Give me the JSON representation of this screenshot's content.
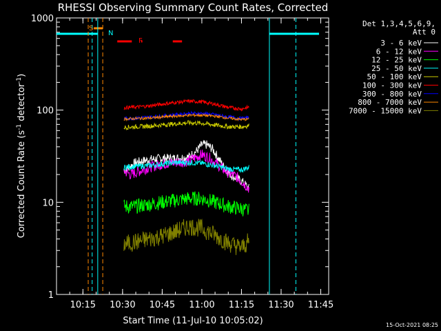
{
  "chart_data": {
    "type": "line",
    "title": "RHESSI Observing Summary Count Rates, Corrected",
    "xlabel": "Start Time (11-Jul-10 10:05:02)",
    "ylabel_main": "Corrected Count Rate (s",
    "ylabel_sup1": "-1",
    "ylabel_mid": " detector",
    "ylabel_sup2": "-1",
    "ylabel_end": ")",
    "yscale": "log",
    "ylim": [
      1,
      1000
    ],
    "xlim_minutes": [
      0,
      103
    ],
    "x_ticks": [
      {
        "label": "10:15",
        "t": 10
      },
      {
        "label": "10:30",
        "t": 25
      },
      {
        "label": "10:45",
        "t": 40
      },
      {
        "label": "11:00",
        "t": 55
      },
      {
        "label": "11:15",
        "t": 70
      },
      {
        "label": "11:30",
        "t": 85
      },
      {
        "label": "11:45",
        "t": 100
      }
    ],
    "y_ticks": [
      {
        "label": "1",
        "v": 1
      },
      {
        "label": "10",
        "v": 10
      },
      {
        "label": "100",
        "v": 100
      },
      {
        "label": "1000",
        "v": 1000
      }
    ],
    "legend": {
      "header1": "Det 1,3,4,5,6,9,",
      "header2": "Att 0",
      "placement": "right"
    },
    "series": [
      {
        "name": "3 - 6 keV",
        "color": "#ffffff",
        "t": [
          0,
          25.5,
          30,
          35,
          40,
          45,
          50,
          53,
          55,
          57,
          59,
          61,
          63,
          65,
          67,
          70,
          73
        ],
        "values": [
          null,
          22,
          27,
          29,
          30,
          30,
          31,
          36,
          42,
          42,
          38,
          31,
          25,
          21,
          19,
          17,
          14
        ]
      },
      {
        "name": "6 - 12 keV",
        "color": "#ff00ff",
        "t": [
          25.5,
          28,
          30,
          35,
          40,
          45,
          50,
          53,
          55,
          58,
          60,
          63,
          65,
          68,
          70,
          73
        ],
        "values": [
          22,
          20,
          21,
          24,
          26,
          27,
          28,
          31,
          33,
          30,
          27,
          23,
          21,
          19,
          17,
          14
        ]
      },
      {
        "name": "12 - 25 keV",
        "color": "#00ff00",
        "t": [
          25.5,
          30,
          35,
          40,
          45,
          50,
          55,
          60,
          65,
          70,
          73
        ],
        "values": [
          9,
          9,
          9.5,
          10,
          10.5,
          11,
          11,
          10,
          9,
          8.5,
          8
        ]
      },
      {
        "name": "25 - 50 keV",
        "color": "#00ffff",
        "t": [
          25.5,
          30,
          35,
          40,
          45,
          50,
          55,
          60,
          65,
          70,
          73
        ],
        "values": [
          24,
          24.5,
          25,
          26,
          27,
          27,
          26.5,
          25,
          23,
          22.5,
          24
        ]
      },
      {
        "name": "50 - 100 keV",
        "color": "#cccc00",
        "t": [
          25.5,
          30,
          35,
          40,
          45,
          50,
          55,
          60,
          65,
          70,
          73
        ],
        "values": [
          65,
          66,
          67,
          69,
          71,
          73,
          72,
          69,
          66,
          66,
          68
        ]
      },
      {
        "name": "100 - 300 keV",
        "color": "#ff0000",
        "t": [
          25.5,
          30,
          35,
          40,
          45,
          50,
          55,
          60,
          65,
          70,
          73
        ],
        "values": [
          106,
          108,
          111,
          116,
          121,
          125,
          123,
          116,
          107,
          103,
          108
        ]
      },
      {
        "name": "300 - 800 keV",
        "color": "#0000ff",
        "t": [
          25.5,
          30,
          35,
          40,
          45,
          50,
          55,
          60,
          65,
          70,
          73
        ],
        "values": [
          81,
          82,
          84,
          86,
          89,
          92,
          92,
          89,
          84,
          81,
          83
        ]
      },
      {
        "name": "800 - 7000 keV",
        "color": "#ff8800",
        "t": [
          25.5,
          30,
          35,
          40,
          45,
          50,
          55,
          60,
          65,
          70,
          73
        ],
        "values": [
          80,
          81,
          82,
          84,
          86,
          88,
          88,
          86,
          82,
          79,
          80
        ]
      },
      {
        "name": "7000 - 15000 keV",
        "color": "#808000",
        "t": [
          25.5,
          30,
          35,
          40,
          45,
          50,
          55,
          60,
          65,
          70,
          73
        ],
        "values": [
          3.5,
          3.7,
          4.0,
          4.3,
          4.8,
          5.5,
          5.2,
          4.4,
          3.6,
          3.2,
          3.8
        ]
      }
    ],
    "markers": {
      "S_label": "S",
      "N_label": "N",
      "F_label": "F",
      "dash_label": "-",
      "S_time": 11.5,
      "N_time": 13.5,
      "orange_dashed_times": [
        12,
        17.5
      ],
      "cyan_dashed_times": [
        13.5,
        88.5
      ],
      "cyan_solid_times": [
        13,
        79
      ],
      "flare_segments": [
        [
          23,
          28.5
        ],
        [
          32,
          32.5
        ],
        [
          44,
          47.5
        ]
      ]
    }
  },
  "footer": {
    "timestamp": "15-Oct-2021 08:25"
  }
}
